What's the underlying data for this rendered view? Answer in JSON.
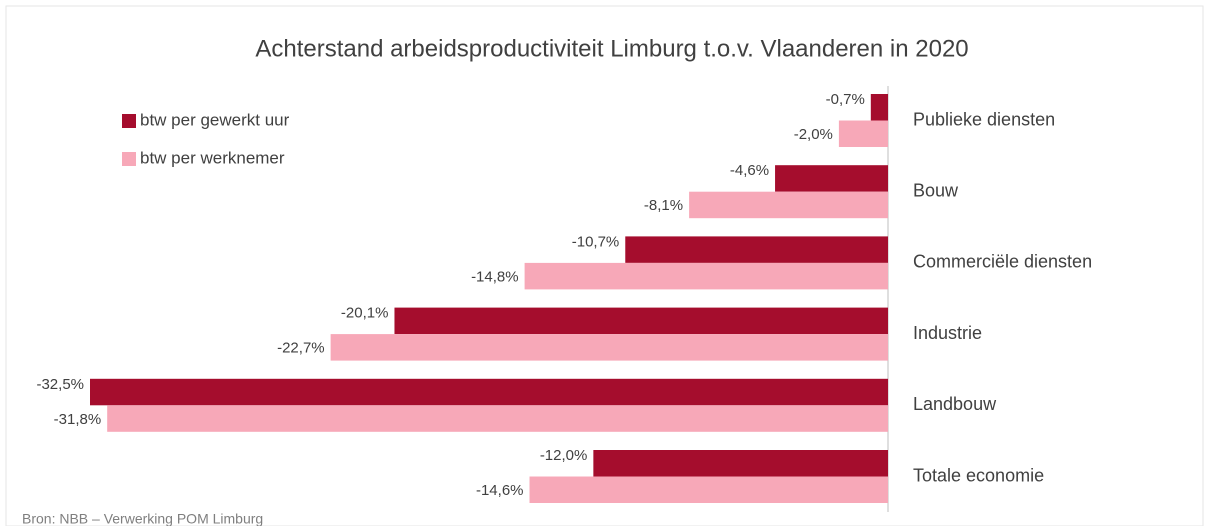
{
  "chart_data": {
    "type": "barh",
    "title": "Achterstand arbeidsproductiviteit Limburg t.o.v. Vlaanderen in 2020",
    "categories": [
      "Publieke diensten",
      "Bouw",
      "Commerciële diensten",
      "Industrie",
      "Landbouw",
      "Totale economie"
    ],
    "series": [
      {
        "name": "btw per gewerkt uur",
        "color": "#a50d2d",
        "values": [
          -0.7,
          -4.6,
          -10.7,
          -20.1,
          -32.5,
          -12.0
        ],
        "value_labels": [
          "-0,7%",
          "-4,6%",
          "-10,7%",
          "-20,1%",
          "-32,5%",
          "-12,0%"
        ]
      },
      {
        "name": "btw per werknemer",
        "color": "#f7a8b8",
        "values": [
          -2.0,
          -8.1,
          -14.8,
          -22.7,
          -31.8,
          -14.6
        ],
        "value_labels": [
          "-2,0%",
          "-8,1%",
          "-14,8%",
          "-22,7%",
          "-31,8%",
          "-14,6%"
        ]
      }
    ],
    "xlim": [
      -32.5,
      0
    ],
    "legend": "top-left",
    "source": "Bron: NBB – Verwerking POM Limburg"
  }
}
